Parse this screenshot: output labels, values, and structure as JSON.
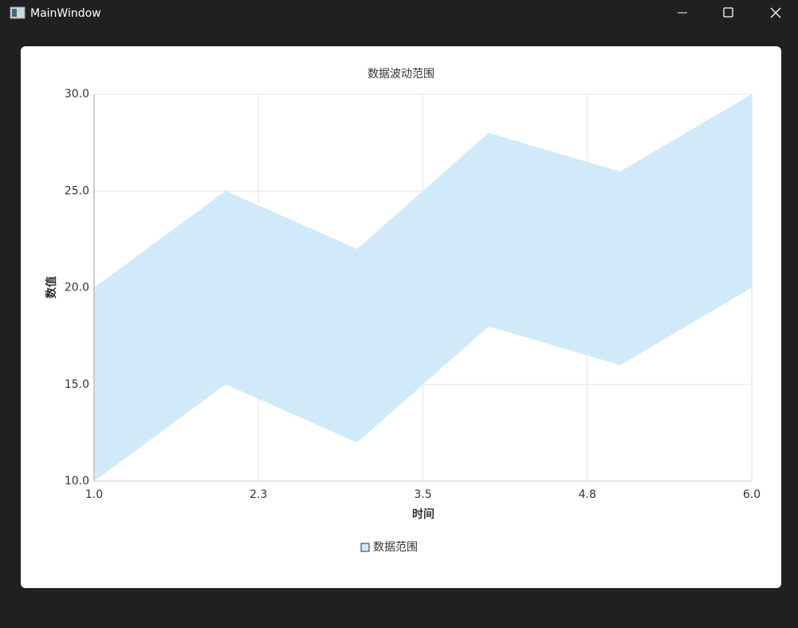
{
  "window": {
    "title": "MainWindow"
  },
  "chart_data": {
    "type": "range-area",
    "title": "数据波动范围",
    "x_label": "时间",
    "y_label": "数值",
    "x": [
      1,
      2,
      3,
      4,
      5,
      6
    ],
    "series": [
      {
        "name": "数据范围",
        "color": "#d0eafa",
        "upper": [
          20,
          25,
          22,
          28,
          26,
          30
        ],
        "lower": [
          10,
          15,
          12,
          18,
          16,
          20
        ]
      }
    ],
    "xlim": [
      1,
      6
    ],
    "xticks": [
      {
        "value": 1,
        "label": "1.0"
      },
      {
        "value": 2.25,
        "label": "2.3"
      },
      {
        "value": 3.5,
        "label": "3.5"
      },
      {
        "value": 4.75,
        "label": "4.8"
      },
      {
        "value": 6,
        "label": "6.0"
      }
    ],
    "ylim": [
      10,
      30
    ],
    "yticks": [
      {
        "value": 10,
        "label": "10.0"
      },
      {
        "value": 15,
        "label": "15.0"
      },
      {
        "value": 20,
        "label": "20.0"
      },
      {
        "value": 25,
        "label": "25.0"
      },
      {
        "value": 30,
        "label": "30.0"
      }
    ],
    "grid": true,
    "legend": "bottom"
  }
}
